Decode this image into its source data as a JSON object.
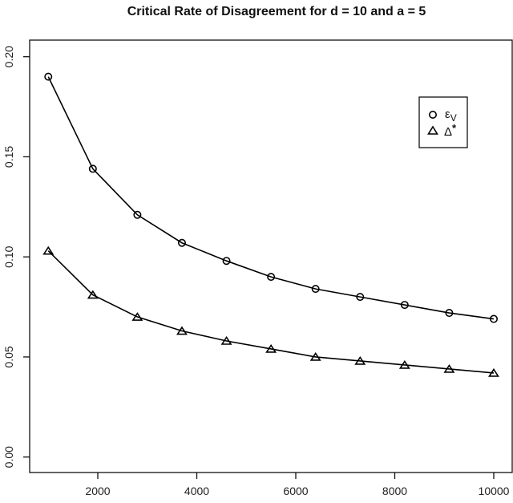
{
  "chart_data": {
    "type": "line",
    "title": "Critical Rate of Disagreement for d = 10 and a = 5",
    "xlabel": "",
    "ylabel": "",
    "x": [
      1000,
      1900,
      2800,
      3700,
      4600,
      5500,
      6400,
      7300,
      8200,
      9100,
      10000
    ],
    "series": [
      {
        "name": "εV",
        "label_main": "ε",
        "label_sub": "V",
        "marker": "circle",
        "values": [
          0.19,
          0.144,
          0.121,
          0.107,
          0.098,
          0.09,
          0.084,
          0.08,
          0.076,
          0.072,
          0.069
        ]
      },
      {
        "name": "Δ*",
        "label_main": "Δ",
        "label_sup": "*",
        "marker": "triangle",
        "values": [
          0.103,
          0.081,
          0.07,
          0.063,
          0.058,
          0.054,
          0.05,
          0.048,
          0.046,
          0.044,
          0.042
        ]
      }
    ],
    "xlim": [
      1000,
      10000
    ],
    "ylim": [
      0.0,
      0.2
    ],
    "xticks": [
      2000,
      4000,
      6000,
      8000,
      10000
    ],
    "xtick_labels": [
      "2000",
      "4000",
      "6000",
      "8000",
      "10000"
    ],
    "yticks": [
      0.0,
      0.05,
      0.1,
      0.15,
      0.2
    ],
    "ytick_labels": [
      "0.00",
      "0.05",
      "0.10",
      "0.15",
      "0.20"
    ],
    "grid": false,
    "legend_position": "top-right"
  }
}
